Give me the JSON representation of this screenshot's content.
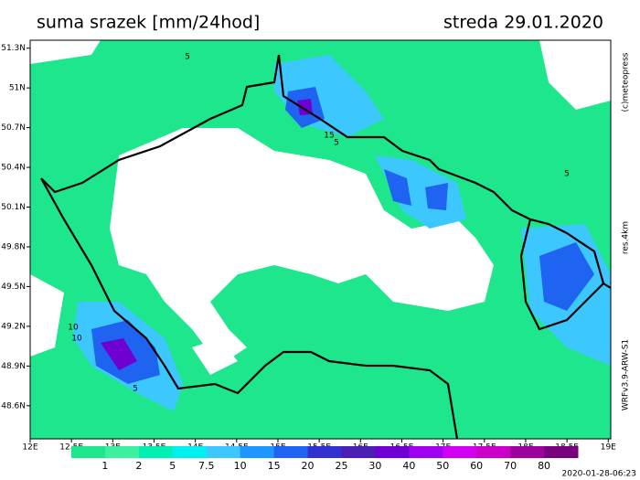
{
  "header": {
    "title": "suma srazek [mm/24hod]",
    "date": "streda 29.01.2020"
  },
  "map": {
    "lonlim": [
      12,
      19.03
    ],
    "latlim": [
      48.35,
      51.36
    ],
    "xticks": [
      {
        "value": 12,
        "label": "12E"
      },
      {
        "value": 12.5,
        "label": "12.5E"
      },
      {
        "value": 13,
        "label": "13E"
      },
      {
        "value": 13.5,
        "label": "13.5E"
      },
      {
        "value": 14,
        "label": "14E"
      },
      {
        "value": 14.5,
        "label": "14.5E"
      },
      {
        "value": 15,
        "label": "15E"
      },
      {
        "value": 15.5,
        "label": "15.5E"
      },
      {
        "value": 16,
        "label": "16E"
      },
      {
        "value": 16.5,
        "label": "16.5E"
      },
      {
        "value": 17,
        "label": "17E"
      },
      {
        "value": 17.5,
        "label": "17.5E"
      },
      {
        "value": 18,
        "label": "18E"
      },
      {
        "value": 18.5,
        "label": "18.5E"
      },
      {
        "value": 19,
        "label": "19E"
      }
    ],
    "yticks": [
      {
        "value": 51.3,
        "label": "51.3N"
      },
      {
        "value": 51,
        "label": "51N"
      },
      {
        "value": 50.7,
        "label": "50.7N"
      },
      {
        "value": 50.4,
        "label": "50.4N"
      },
      {
        "value": 50.1,
        "label": "50.1N"
      },
      {
        "value": 49.8,
        "label": "49.8N"
      },
      {
        "value": 49.5,
        "label": "49.5N"
      },
      {
        "value": 49.2,
        "label": "49.2N"
      },
      {
        "value": 48.9,
        "label": "48.9N"
      },
      {
        "value": 48.6,
        "label": "48.6N"
      }
    ],
    "contour_labels": [
      5,
      15,
      5,
      5,
      10,
      10,
      5
    ]
  },
  "credits": {
    "copyright": "(c)meteopress",
    "resolution": "res.4km",
    "model": "WRFv3.9-ARW-S1"
  },
  "colorbar": {
    "colors": [
      "#1ee68c",
      "#3cf0a0",
      "#00f0b4",
      "#00f0f0",
      "#3cc8ff",
      "#1e96ff",
      "#1e64f0",
      "#3232d2",
      "#4b1eb4",
      "#6e00d2",
      "#a000f0",
      "#d200f0",
      "#c800c8",
      "#a0009b",
      "#78007d"
    ],
    "ticks": [
      1,
      2,
      5,
      7.5,
      10,
      15,
      20,
      25,
      30,
      40,
      50,
      60,
      70,
      80
    ]
  },
  "timestamp": "2020-01-28-06:23"
}
